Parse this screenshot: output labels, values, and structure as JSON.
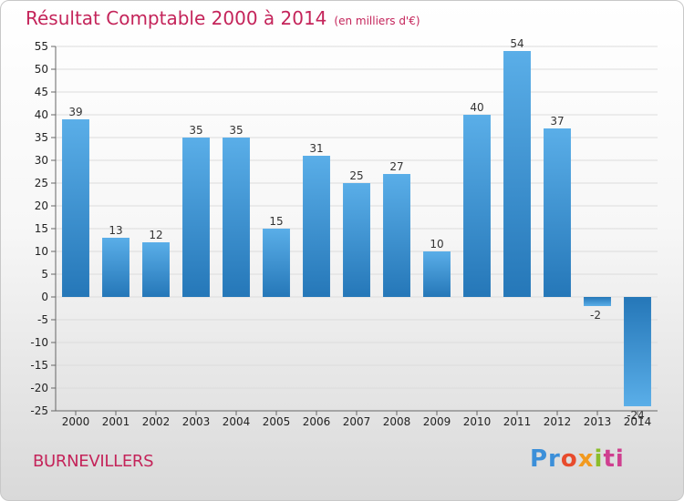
{
  "header": {
    "title": "Résultat Comptable 2000 à 2014",
    "subtitle": "(en milliers d'€)"
  },
  "location": "BURNEVILLERS",
  "logo": [
    "Pr",
    "o",
    "x",
    "i",
    "ti"
  ],
  "colors": {
    "title": "#c4245a",
    "bar_light": "#5aaee8",
    "bar_dark": "#2577b8"
  },
  "chart_data": {
    "type": "bar",
    "title": "Résultat Comptable 2000 à 2014",
    "categories": [
      "2000",
      "2001",
      "2002",
      "2003",
      "2004",
      "2005",
      "2006",
      "2007",
      "2008",
      "2009",
      "2010",
      "2011",
      "2012",
      "2013",
      "2014"
    ],
    "values": [
      39,
      13,
      12,
      35,
      35,
      15,
      31,
      25,
      27,
      10,
      40,
      54,
      37,
      -2,
      -24
    ],
    "ylim": [
      -25,
      55
    ],
    "yticks": [
      55,
      50,
      45,
      40,
      35,
      30,
      25,
      20,
      15,
      10,
      5,
      0,
      -5,
      -10,
      -15,
      -20,
      -25
    ],
    "grid": true
  }
}
